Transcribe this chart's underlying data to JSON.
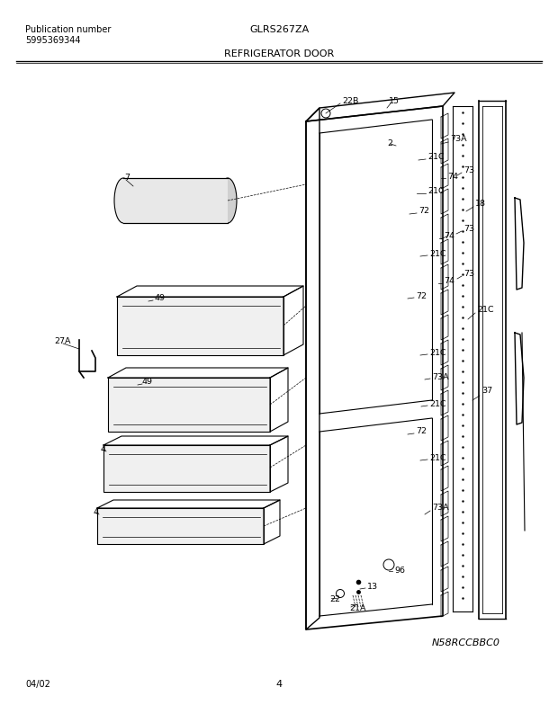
{
  "title_left_line1": "Publication number",
  "title_left_line2": "5995369344",
  "title_center_top": "GLRS267ZA",
  "title_center_bottom": "REFRIGERATOR DOOR",
  "bottom_left": "04/02",
  "bottom_center": "4",
  "bottom_right_code": "N58RCCBBC0",
  "bg_color": "#ffffff",
  "fig_width": 6.2,
  "fig_height": 7.94,
  "dpi": 100
}
